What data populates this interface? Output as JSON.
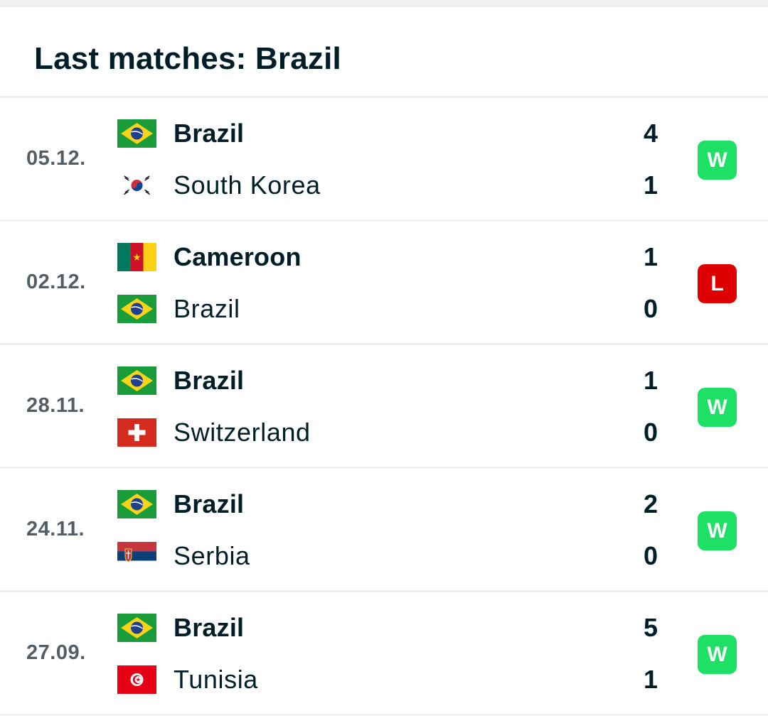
{
  "title": "Last matches: Brazil",
  "colors": {
    "win": "#1ee064",
    "loss": "#de0000",
    "text": "#001e28",
    "date": "#535d63",
    "divider": "#eef0f1"
  },
  "matches": [
    {
      "date": "05.12.",
      "result": "W",
      "home": {
        "name": "Brazil",
        "flag": "brazil-flag",
        "score": "4",
        "winner": true
      },
      "away": {
        "name": "South Korea",
        "flag": "south-korea-flag",
        "score": "1",
        "winner": false
      }
    },
    {
      "date": "02.12.",
      "result": "L",
      "home": {
        "name": "Cameroon",
        "flag": "cameroon-flag",
        "score": "1",
        "winner": true
      },
      "away": {
        "name": "Brazil",
        "flag": "brazil-flag",
        "score": "0",
        "winner": false
      }
    },
    {
      "date": "28.11.",
      "result": "W",
      "home": {
        "name": "Brazil",
        "flag": "brazil-flag",
        "score": "1",
        "winner": true
      },
      "away": {
        "name": "Switzerland",
        "flag": "switzerland-flag",
        "score": "0",
        "winner": false
      }
    },
    {
      "date": "24.11.",
      "result": "W",
      "home": {
        "name": "Brazil",
        "flag": "brazil-flag",
        "score": "2",
        "winner": true
      },
      "away": {
        "name": "Serbia",
        "flag": "serbia-flag",
        "score": "0",
        "winner": false
      }
    },
    {
      "date": "27.09.",
      "result": "W",
      "home": {
        "name": "Brazil",
        "flag": "brazil-flag",
        "score": "5",
        "winner": true
      },
      "away": {
        "name": "Tunisia",
        "flag": "tunisia-flag",
        "score": "1",
        "winner": false
      }
    }
  ]
}
